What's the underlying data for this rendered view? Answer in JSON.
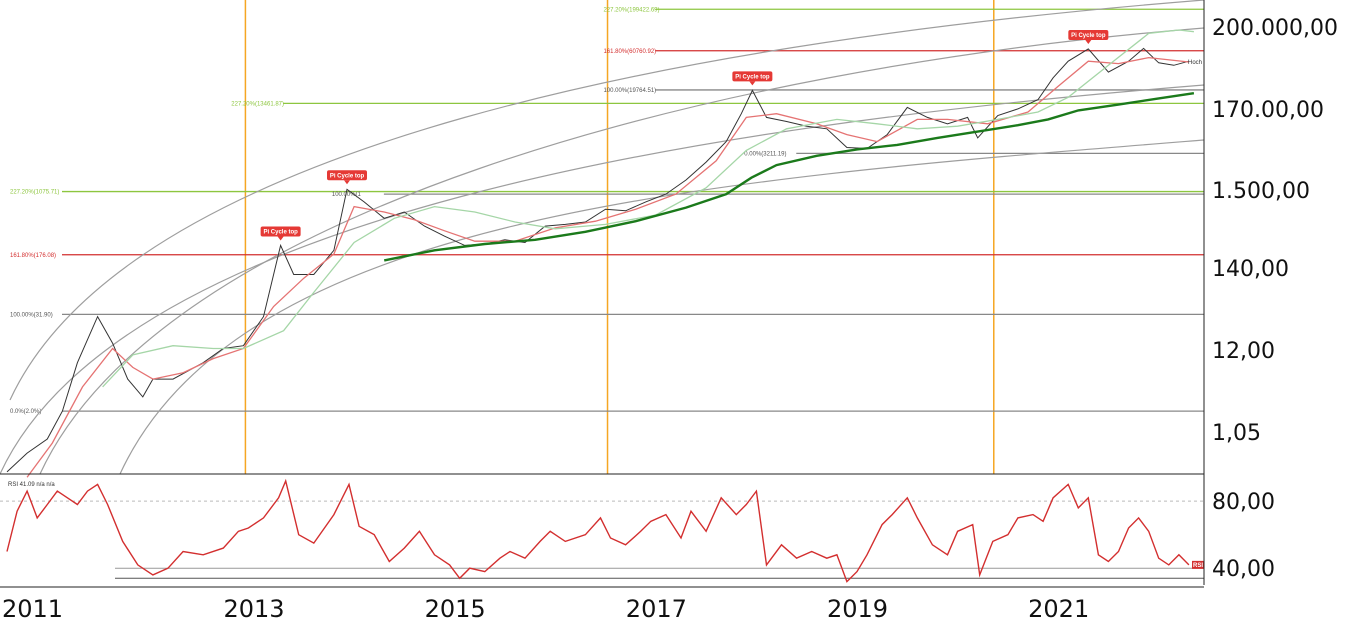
{
  "chart_data": {
    "type": "line",
    "y_axis_labels": [
      "200.000,00",
      "170.00,00",
      "1.500,00",
      "140,00",
      "12,00",
      "1,05"
    ],
    "rsi_axis_labels": [
      "80,00",
      "40,00"
    ],
    "x_axis_labels": [
      "2011",
      "2013",
      "2015",
      "2017",
      "2019",
      "2021"
    ],
    "x_range": [
      2010.55,
      2022.5
    ],
    "y_scale": "log",
    "y_range_usd": [
      0.3,
      250000
    ],
    "cycle_lines_year": [
      2012.92,
      2016.52,
      2020.36
    ],
    "fib_levels": [
      {
        "label": "227.20%(199422.69)",
        "value": 199422.69,
        "color": "#8dc63f"
      },
      {
        "label": "161.80%(60760.92)",
        "value": 60760.92,
        "color": "#d32f2f"
      },
      {
        "label": "100.00%(19764.51)",
        "value": 19764.51,
        "color": "#888888"
      },
      {
        "label": "227.20%(13461.87)",
        "value": 13461.87,
        "color": "#8dc63f"
      },
      {
        "label": "0.00%(3211.19)",
        "value": 3211.19,
        "color": "#888888"
      },
      {
        "label": "227.20%(1075.71)",
        "value": 1075.71,
        "color": "#8dc63f"
      },
      {
        "label": "100.00%(1",
        "value": 1000,
        "color": "#888888"
      },
      {
        "label": "161.80%(176.08)",
        "value": 176.08,
        "color": "#d32f2f"
      },
      {
        "label": "100.00%(31.90)",
        "value": 31.9,
        "color": "#888888"
      },
      {
        "label": "0.0%(2.0%)",
        "value": 2.0,
        "color": "#888888"
      }
    ],
    "pi_cycle_tops": [
      {
        "label": "Pi Cycle top",
        "year": 2013.27,
        "value": 230
      },
      {
        "label": "Pi Cycle top",
        "year": 2013.93,
        "value": 1150
      },
      {
        "label": "Pi Cycle top",
        "year": 2017.96,
        "value": 19500
      },
      {
        "label": "Pi Cycle top",
        "year": 2021.3,
        "value": 64000
      }
    ],
    "hoch_label": "Hoch",
    "rsi_legend": "RSI  41.09  n/a  n/a",
    "rsi_badge": "RSI",
    "series": [
      {
        "color": "#333333",
        "points": [
          [
            2010.55,
            0.35
          ],
          [
            2010.75,
            0.6
          ],
          [
            2010.95,
            0.9
          ],
          [
            2011.1,
            2
          ],
          [
            2011.25,
            8
          ],
          [
            2011.45,
            30
          ],
          [
            2011.6,
            14
          ],
          [
            2011.75,
            5
          ],
          [
            2011.9,
            3
          ],
          [
            2012.0,
            5
          ],
          [
            2012.2,
            5
          ],
          [
            2012.5,
            8
          ],
          [
            2012.7,
            12
          ],
          [
            2012.9,
            13
          ],
          [
            2013.1,
            30
          ],
          [
            2013.27,
            230
          ],
          [
            2013.4,
            100
          ],
          [
            2013.6,
            100
          ],
          [
            2013.8,
            200
          ],
          [
            2013.93,
            1150
          ],
          [
            2014.1,
            800
          ],
          [
            2014.3,
            500
          ],
          [
            2014.5,
            600
          ],
          [
            2014.7,
            400
          ],
          [
            2014.9,
            300
          ],
          [
            2015.1,
            230
          ],
          [
            2015.3,
            240
          ],
          [
            2015.5,
            270
          ],
          [
            2015.7,
            250
          ],
          [
            2015.9,
            400
          ],
          [
            2016.1,
            420
          ],
          [
            2016.3,
            450
          ],
          [
            2016.5,
            650
          ],
          [
            2016.7,
            620
          ],
          [
            2016.9,
            800
          ],
          [
            2017.1,
            1000
          ],
          [
            2017.3,
            1500
          ],
          [
            2017.5,
            2500
          ],
          [
            2017.7,
            4500
          ],
          [
            2017.85,
            10000
          ],
          [
            2017.96,
            19500
          ],
          [
            2018.1,
            9000
          ],
          [
            2018.3,
            8000
          ],
          [
            2018.5,
            7000
          ],
          [
            2018.7,
            6500
          ],
          [
            2018.9,
            3800
          ],
          [
            2019.1,
            3700
          ],
          [
            2019.3,
            5500
          ],
          [
            2019.5,
            12000
          ],
          [
            2019.7,
            9000
          ],
          [
            2019.9,
            7500
          ],
          [
            2020.1,
            9000
          ],
          [
            2020.2,
            5000
          ],
          [
            2020.4,
            9500
          ],
          [
            2020.6,
            11500
          ],
          [
            2020.8,
            15000
          ],
          [
            2020.95,
            28000
          ],
          [
            2021.1,
            45000
          ],
          [
            2021.3,
            64000
          ],
          [
            2021.5,
            33000
          ],
          [
            2021.7,
            45000
          ],
          [
            2021.85,
            65000
          ],
          [
            2022.0,
            43000
          ],
          [
            2022.15,
            40000
          ],
          [
            2022.3,
            45000
          ]
        ]
      },
      {
        "color": "#e57373",
        "points": [
          [
            2010.75,
            0.3
          ],
          [
            2011.0,
            0.8
          ],
          [
            2011.3,
            4
          ],
          [
            2011.6,
            12
          ],
          [
            2011.8,
            7
          ],
          [
            2012.0,
            5
          ],
          [
            2012.3,
            6
          ],
          [
            2012.6,
            9
          ],
          [
            2012.9,
            12
          ],
          [
            2013.2,
            40
          ],
          [
            2013.5,
            90
          ],
          [
            2013.8,
            180
          ],
          [
            2014.0,
            700
          ],
          [
            2014.3,
            600
          ],
          [
            2014.6,
            480
          ],
          [
            2014.9,
            350
          ],
          [
            2015.2,
            260
          ],
          [
            2015.6,
            260
          ],
          [
            2016.0,
            380
          ],
          [
            2016.4,
            460
          ],
          [
            2016.8,
            650
          ],
          [
            2017.2,
            1000
          ],
          [
            2017.6,
            2600
          ],
          [
            2017.9,
            9000
          ],
          [
            2018.2,
            10000
          ],
          [
            2018.6,
            7500
          ],
          [
            2018.9,
            5500
          ],
          [
            2019.2,
            4500
          ],
          [
            2019.6,
            8500
          ],
          [
            2019.9,
            8500
          ],
          [
            2020.3,
            7500
          ],
          [
            2020.7,
            10500
          ],
          [
            2021.0,
            22000
          ],
          [
            2021.3,
            45000
          ],
          [
            2021.6,
            42000
          ],
          [
            2021.9,
            50000
          ],
          [
            2022.3,
            44000
          ]
        ]
      },
      {
        "color": "#a5d6a7",
        "points": [
          [
            2011.5,
            4
          ],
          [
            2011.8,
            10
          ],
          [
            2012.2,
            13
          ],
          [
            2012.6,
            12
          ],
          [
            2012.9,
            12
          ],
          [
            2013.3,
            20
          ],
          [
            2013.6,
            60
          ],
          [
            2014.0,
            250
          ],
          [
            2014.4,
            500
          ],
          [
            2014.8,
            700
          ],
          [
            2015.2,
            600
          ],
          [
            2015.6,
            450
          ],
          [
            2016.0,
            370
          ],
          [
            2016.5,
            420
          ],
          [
            2017.0,
            550
          ],
          [
            2017.5,
            1200
          ],
          [
            2017.9,
            3500
          ],
          [
            2018.3,
            6500
          ],
          [
            2018.8,
            8500
          ],
          [
            2019.2,
            7500
          ],
          [
            2019.6,
            6500
          ],
          [
            2020.0,
            7000
          ],
          [
            2020.4,
            8500
          ],
          [
            2020.8,
            10500
          ],
          [
            2021.1,
            16000
          ],
          [
            2021.5,
            40000
          ],
          [
            2021.9,
            100000
          ],
          [
            2022.2,
            110000
          ],
          [
            2022.35,
            105000
          ]
        ]
      },
      {
        "color": "#1b7a1b",
        "points": [
          [
            2014.3,
            150
          ],
          [
            2014.8,
            200
          ],
          [
            2015.3,
            240
          ],
          [
            2015.8,
            270
          ],
          [
            2016.3,
            340
          ],
          [
            2016.8,
            460
          ],
          [
            2017.3,
            680
          ],
          [
            2017.7,
            1000
          ],
          [
            2017.95,
            1600
          ],
          [
            2018.2,
            2300
          ],
          [
            2018.6,
            3000
          ],
          [
            2019.0,
            3600
          ],
          [
            2019.4,
            4100
          ],
          [
            2019.8,
            5000
          ],
          [
            2020.2,
            6000
          ],
          [
            2020.6,
            7200
          ],
          [
            2020.9,
            8500
          ],
          [
            2021.2,
            11000
          ],
          [
            2021.6,
            13000
          ],
          [
            2022.0,
            15500
          ],
          [
            2022.35,
            18000
          ]
        ]
      }
    ],
    "rsi": {
      "color": "#d32f2f",
      "points": [
        [
          2010.55,
          50
        ],
        [
          2010.65,
          74
        ],
        [
          2010.75,
          86
        ],
        [
          2010.85,
          70
        ],
        [
          2010.95,
          78
        ],
        [
          2011.05,
          86
        ],
        [
          2011.15,
          82
        ],
        [
          2011.25,
          78
        ],
        [
          2011.35,
          86
        ],
        [
          2011.45,
          90
        ],
        [
          2011.55,
          78
        ],
        [
          2011.7,
          56
        ],
        [
          2011.85,
          42
        ],
        [
          2012.0,
          36
        ],
        [
          2012.15,
          40
        ],
        [
          2012.3,
          50
        ],
        [
          2012.5,
          48
        ],
        [
          2012.7,
          52
        ],
        [
          2012.85,
          62
        ],
        [
          2012.95,
          64
        ],
        [
          2013.1,
          70
        ],
        [
          2013.25,
          82
        ],
        [
          2013.32,
          92
        ],
        [
          2013.45,
          60
        ],
        [
          2013.6,
          55
        ],
        [
          2013.8,
          72
        ],
        [
          2013.95,
          90
        ],
        [
          2014.05,
          65
        ],
        [
          2014.2,
          60
        ],
        [
          2014.35,
          44
        ],
        [
          2014.5,
          52
        ],
        [
          2014.65,
          62
        ],
        [
          2014.8,
          48
        ],
        [
          2014.95,
          42
        ],
        [
          2015.05,
          34
        ],
        [
          2015.15,
          40
        ],
        [
          2015.3,
          38
        ],
        [
          2015.45,
          46
        ],
        [
          2015.55,
          50
        ],
        [
          2015.7,
          46
        ],
        [
          2015.85,
          56
        ],
        [
          2015.95,
          62
        ],
        [
          2016.1,
          56
        ],
        [
          2016.3,
          60
        ],
        [
          2016.45,
          70
        ],
        [
          2016.55,
          58
        ],
        [
          2016.7,
          54
        ],
        [
          2016.85,
          62
        ],
        [
          2016.95,
          68
        ],
        [
          2017.1,
          72
        ],
        [
          2017.25,
          58
        ],
        [
          2017.35,
          74
        ],
        [
          2017.5,
          62
        ],
        [
          2017.65,
          82
        ],
        [
          2017.8,
          72
        ],
        [
          2017.9,
          78
        ],
        [
          2018.0,
          86
        ],
        [
          2018.1,
          42
        ],
        [
          2018.25,
          54
        ],
        [
          2018.4,
          46
        ],
        [
          2018.55,
          50
        ],
        [
          2018.7,
          46
        ],
        [
          2018.8,
          48
        ],
        [
          2018.9,
          32
        ],
        [
          2019.0,
          38
        ],
        [
          2019.1,
          48
        ],
        [
          2019.25,
          66
        ],
        [
          2019.35,
          72
        ],
        [
          2019.5,
          82
        ],
        [
          2019.6,
          70
        ],
        [
          2019.75,
          54
        ],
        [
          2019.9,
          48
        ],
        [
          2020.0,
          62
        ],
        [
          2020.15,
          66
        ],
        [
          2020.22,
          36
        ],
        [
          2020.35,
          56
        ],
        [
          2020.5,
          60
        ],
        [
          2020.6,
          70
        ],
        [
          2020.75,
          72
        ],
        [
          2020.85,
          68
        ],
        [
          2020.95,
          82
        ],
        [
          2021.1,
          90
        ],
        [
          2021.2,
          76
        ],
        [
          2021.3,
          82
        ],
        [
          2021.4,
          48
        ],
        [
          2021.5,
          44
        ],
        [
          2021.6,
          50
        ],
        [
          2021.7,
          64
        ],
        [
          2021.8,
          70
        ],
        [
          2021.9,
          62
        ],
        [
          2022.0,
          46
        ],
        [
          2022.1,
          42
        ],
        [
          2022.2,
          48
        ],
        [
          2022.3,
          42
        ]
      ]
    }
  }
}
